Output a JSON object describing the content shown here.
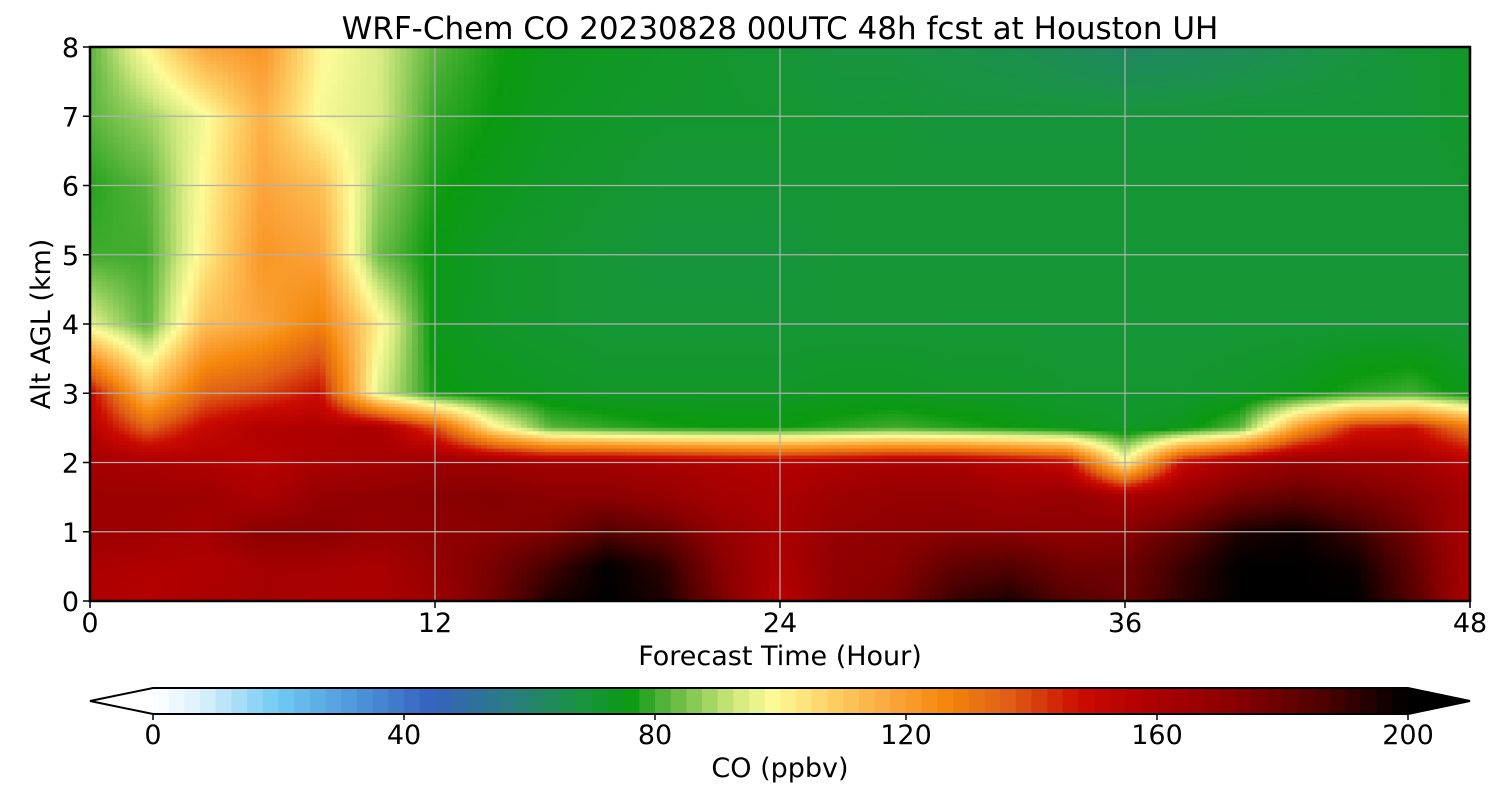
{
  "chart_data": {
    "type": "heatmap",
    "title": "WRF-Chem CO  20230828 00UTC 48h fcst at Houston UH",
    "xlabel": "Forecast Time (Hour)",
    "ylabel": "Alt AGL (km)",
    "xlim": [
      0,
      48
    ],
    "ylim": [
      0,
      8
    ],
    "x_ticks": [
      "0",
      "12",
      "24",
      "36",
      "48"
    ],
    "y_ticks": [
      "0",
      "1",
      "2",
      "3",
      "4",
      "5",
      "6",
      "7",
      "8"
    ],
    "grid": true,
    "x": [
      0,
      2,
      4,
      6,
      8,
      10,
      12,
      14,
      16,
      18,
      20,
      22,
      24,
      26,
      28,
      30,
      32,
      34,
      36,
      38,
      40,
      42,
      44,
      46,
      48
    ],
    "y": [
      0,
      0.5,
      1,
      1.5,
      2,
      2.5,
      3,
      4,
      5,
      6,
      7,
      8
    ],
    "z": [
      [
        158,
        156,
        160,
        162,
        160,
        160,
        165,
        178,
        195,
        200,
        195,
        175,
        155,
        170,
        175,
        190,
        195,
        185,
        180,
        192,
        200,
        200,
        200,
        185,
        160
      ],
      [
        160,
        158,
        158,
        162,
        162,
        160,
        168,
        176,
        188,
        200,
        192,
        172,
        158,
        170,
        172,
        182,
        185,
        178,
        178,
        190,
        200,
        200,
        198,
        182,
        160
      ],
      [
        165,
        165,
        162,
        172,
        172,
        168,
        170,
        172,
        175,
        185,
        180,
        168,
        160,
        168,
        170,
        172,
        172,
        170,
        172,
        182,
        195,
        198,
        190,
        178,
        160
      ],
      [
        165,
        165,
        165,
        160,
        168,
        170,
        172,
        174,
        172,
        172,
        168,
        162,
        160,
        165,
        168,
        168,
        165,
        168,
        162,
        168,
        178,
        182,
        178,
        172,
        162
      ],
      [
        162,
        160,
        158,
        155,
        160,
        162,
        165,
        165,
        162,
        162,
        160,
        158,
        156,
        158,
        160,
        160,
        156,
        150,
        100,
        150,
        162,
        168,
        165,
        162,
        155
      ],
      [
        155,
        135,
        150,
        158,
        158,
        160,
        140,
        102,
        82,
        79,
        77,
        76,
        76,
        78,
        80,
        78,
        76,
        74,
        72,
        74,
        82,
        120,
        145,
        148,
        130
      ],
      [
        150,
        112,
        135,
        140,
        148,
        95,
        76,
        74,
        73,
        72,
        72,
        72,
        72,
        73,
        73,
        72,
        72,
        71,
        71,
        71,
        72,
        74,
        78,
        80,
        74
      ],
      [
        95,
        82,
        112,
        118,
        128,
        102,
        74,
        72,
        71,
        70,
        70,
        70,
        70,
        70,
        70,
        70,
        70,
        70,
        70,
        70,
        70,
        70,
        70,
        70,
        70
      ],
      [
        80,
        80,
        102,
        122,
        118,
        84,
        75,
        72,
        71,
        70,
        69,
        69,
        69,
        70,
        70,
        70,
        70,
        70,
        70,
        70,
        70,
        70,
        70,
        70,
        70
      ],
      [
        78,
        82,
        100,
        118,
        112,
        88,
        77,
        74,
        72,
        71,
        70,
        70,
        70,
        70,
        70,
        70,
        70,
        70,
        70,
        70,
        70,
        70,
        70,
        70,
        71
      ],
      [
        82,
        88,
        98,
        115,
        98,
        94,
        79,
        76,
        73,
        72,
        71,
        71,
        71,
        70,
        70,
        69,
        69,
        69,
        69,
        69,
        70,
        70,
        70,
        70,
        72
      ],
      [
        82,
        100,
        118,
        122,
        100,
        94,
        82,
        77,
        74,
        73,
        72,
        71,
        70,
        68,
        68,
        67,
        66,
        64,
        62,
        63,
        64,
        66,
        68,
        70,
        72
      ]
    ],
    "colorbar": {
      "label": "CO  (ppbv)",
      "min": 0,
      "max": 200,
      "ticks": [
        "0",
        "40",
        "80",
        "120",
        "160",
        "200"
      ],
      "extend": "both",
      "stops": [
        [
          0,
          "#ffffff"
        ],
        [
          8,
          "#d8f0fc"
        ],
        [
          20,
          "#6fc9f2"
        ],
        [
          34,
          "#4a8fd6"
        ],
        [
          44,
          "#3563c0"
        ],
        [
          56,
          "#2a7a86"
        ],
        [
          68,
          "#199442"
        ],
        [
          76,
          "#0a9a0f"
        ],
        [
          82,
          "#5ab53c"
        ],
        [
          93,
          "#d3ea80"
        ],
        [
          99,
          "#fdfb98"
        ],
        [
          108,
          "#fdd065"
        ],
        [
          118,
          "#fba43a"
        ],
        [
          126,
          "#f5880c"
        ],
        [
          136,
          "#e06015"
        ],
        [
          148,
          "#ca0b00"
        ],
        [
          158,
          "#b00000"
        ],
        [
          172,
          "#8a0000"
        ],
        [
          186,
          "#500000"
        ],
        [
          194,
          "#220000"
        ],
        [
          200,
          "#000000"
        ]
      ]
    }
  }
}
